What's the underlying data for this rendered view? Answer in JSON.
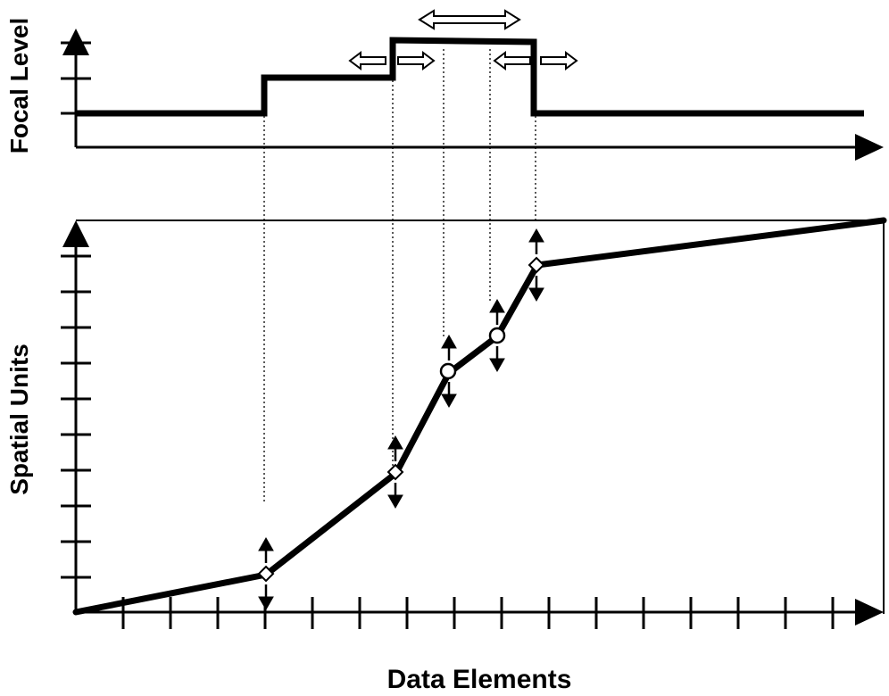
{
  "labels": {
    "focal_axis": "Focal Level",
    "spatial_axis": "Spatial Units",
    "x_axis": "Data Elements"
  },
  "colors": {
    "stroke": "#000000",
    "background": "#ffffff"
  }
}
